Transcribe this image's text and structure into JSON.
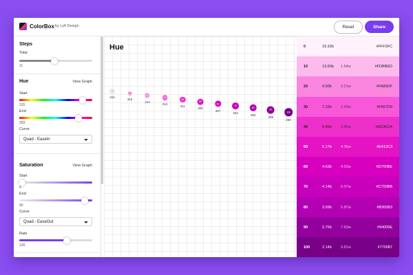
{
  "app": {
    "title": "ColorBox",
    "subtitle": "by Lyft Design"
  },
  "header": {
    "reset_label": "Reset",
    "share_label": "Share"
  },
  "sidebar": {
    "steps": {
      "title": "Steps",
      "total_label": "Total",
      "total_value": "11",
      "total_fraction": 0.48
    },
    "hue": {
      "title": "Hue",
      "view_graph": "View Graph",
      "start_label": "Start",
      "start_value": "315",
      "start_fraction": 0.87,
      "end_label": "End",
      "end_value": "293",
      "end_fraction": 0.81,
      "curve_label": "Curve",
      "curve_value": "Quad - EaseIn"
    },
    "saturation": {
      "title": "Saturation",
      "view_graph": "View Graph",
      "start_label": "Start",
      "start_value": "4",
      "start_fraction": 0.04,
      "end_label": "End",
      "end_value": "90",
      "end_fraction": 0.9,
      "curve_label": "Curve",
      "curve_value": "Quad - EaseOut",
      "rate_label": "Rate",
      "rate_value": "130",
      "rate_fraction": 0.65
    }
  },
  "graph": {
    "title": "Hue",
    "points": [
      {
        "label": "0",
        "value": "315",
        "color": "#FFF2FC",
        "text": "#333333"
      },
      {
        "label": "10",
        "value": "315",
        "color": "#FDBBED",
        "text": "#333333"
      },
      {
        "label": "20",
        "value": "314",
        "color": "#FA86DF",
        "text": "#ffffff"
      },
      {
        "label": "30",
        "value": "313",
        "color": "#F857D9",
        "text": "#ffffff"
      },
      {
        "label": "40",
        "value": "311",
        "color": "#ED30CA",
        "text": "#ffffff"
      },
      {
        "label": "50",
        "value": "309",
        "color": "#E413C3",
        "text": "#ffffff"
      },
      {
        "label": "60",
        "value": "307",
        "color": "#D700BE",
        "text": "#ffffff"
      },
      {
        "label": "70",
        "value": "304",
        "color": "#C700BB",
        "text": "#ffffff"
      },
      {
        "label": "80",
        "value": "300",
        "color": "#B300B3",
        "text": "#ffffff"
      },
      {
        "label": "90",
        "value": "296",
        "color": "#94009E",
        "text": "#ffffff"
      },
      {
        "label": "100",
        "value": "293",
        "color": "#770087",
        "text": "#ffffff"
      }
    ]
  },
  "palette": [
    {
      "step": "0",
      "c1": "19.32b",
      "c2": "",
      "hex": "#FFF2FC",
      "bg": "#FFF2FC",
      "fg": "#222222"
    },
    {
      "step": "10",
      "c1": "13.60b",
      "c2": "1.54w",
      "hex": "#FDBBED",
      "bg": "#FDBBED",
      "fg": "#222222"
    },
    {
      "step": "20",
      "c1": "9.50b",
      "c2": "2.21w",
      "hex": "#FA86DF",
      "bg": "#FA86DF",
      "fg": "#222222"
    },
    {
      "step": "30",
      "c1": "7.16b",
      "c2": "2.93w",
      "hex": "#F857D9",
      "bg": "#F857D9",
      "fg": "#222222"
    },
    {
      "step": "40",
      "c1": "5.86b",
      "c2": "3.56w",
      "hex": "#ED30CA",
      "bg": "#ED30CA",
      "fg": "#222222"
    },
    {
      "step": "50",
      "c1": "5.17b",
      "c2": "4.06w",
      "hex": "#E413C3",
      "bg": "#E413C3",
      "fg": "#ffffff"
    },
    {
      "step": "60",
      "c1": "4.63b",
      "c2": "4.53w",
      "hex": "#D700BE",
      "bg": "#D700BE",
      "fg": "#ffffff"
    },
    {
      "step": "70",
      "c1": "4.14b",
      "c2": "5.07w",
      "hex": "#C700BB",
      "bg": "#C700BB",
      "fg": "#ffffff"
    },
    {
      "step": "80",
      "c1": "3.59b",
      "c2": "5.87w",
      "hex": "#B300B3",
      "bg": "#B300B3",
      "fg": "#ffffff"
    },
    {
      "step": "90",
      "c1": "2.75b",
      "c2": "7.63w",
      "hex": "#94009E",
      "bg": "#94009E",
      "fg": "#ffffff"
    },
    {
      "step": "100",
      "c1": "2.14b",
      "c2": "9.81w",
      "hex": "#770087",
      "bg": "#770087",
      "fg": "#ffffff"
    }
  ],
  "colors": {
    "accent": "#7A3CF0",
    "background": "#8A4DF0",
    "hue_gradient": [
      "#ff0000",
      "#ffff00",
      "#00ff00",
      "#00ffff",
      "#0000ff",
      "#ff00ff",
      "#ff0000"
    ],
    "saturation_gradient": [
      "#eeeeee",
      "#7a3cf0"
    ]
  }
}
